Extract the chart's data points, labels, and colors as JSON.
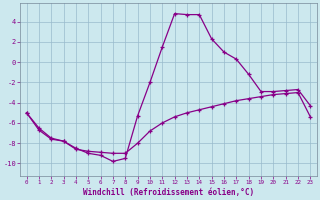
{
  "title": "",
  "xlabel": "Windchill (Refroidissement éolien,°C)",
  "ylabel": "",
  "bg_color": "#cce8ee",
  "line_color": "#880088",
  "grid_color": "#99bbcc",
  "xlim": [
    -0.5,
    23.5
  ],
  "ylim": [
    -11.2,
    5.8
  ],
  "yticks": [
    -10,
    -8,
    -6,
    -4,
    -2,
    0,
    2,
    4
  ],
  "xticks": [
    0,
    1,
    2,
    3,
    4,
    5,
    6,
    7,
    8,
    9,
    10,
    11,
    12,
    13,
    14,
    15,
    16,
    17,
    18,
    19,
    20,
    21,
    22,
    23
  ],
  "line1_x": [
    0,
    1,
    2,
    3,
    4,
    5,
    6,
    7,
    8,
    9,
    10,
    11,
    12,
    13,
    14,
    15,
    16,
    17,
    18,
    19,
    20,
    21,
    22,
    23
  ],
  "line1_y": [
    -5.0,
    -6.5,
    -7.5,
    -7.8,
    -8.5,
    -9.0,
    -9.2,
    -9.8,
    -9.5,
    -5.3,
    -2.0,
    1.5,
    4.8,
    4.7,
    4.7,
    2.3,
    1.0,
    0.3,
    -1.2,
    -2.9,
    -2.9,
    -2.8,
    -2.7,
    -4.3
  ],
  "line2_x": [
    0,
    1,
    2,
    3,
    4,
    5,
    6,
    7,
    8,
    9,
    10,
    11,
    12,
    13,
    14,
    15,
    16,
    17,
    18,
    19,
    20,
    21,
    22,
    23
  ],
  "line2_y": [
    -5.0,
    -6.7,
    -7.6,
    -7.8,
    -8.6,
    -8.8,
    -8.9,
    -9.0,
    -9.0,
    -8.0,
    -6.8,
    -6.0,
    -5.4,
    -5.0,
    -4.7,
    -4.4,
    -4.1,
    -3.8,
    -3.6,
    -3.4,
    -3.2,
    -3.1,
    -3.0,
    -5.4
  ]
}
